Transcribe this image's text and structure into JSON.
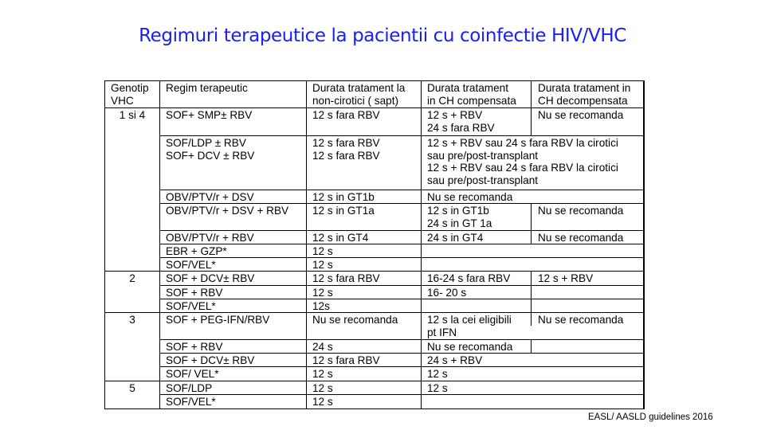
{
  "title": "Regimuri terapeutice la pacientii cu coinfectie HIV/VHC",
  "footer": "EASL/ AASLD guidelines 2016",
  "table": {
    "headers": {
      "genotip": "Genotip\nVHC",
      "regim": "Regim terapeutic",
      "durata_noncirotici": "Durata tratament la\nnon-cirotici ( sapt)",
      "durata_ch_comp": "Durata tratament\nin CH compensata",
      "durata_ch_decomp": "Durata tratament in\nCH decompensata"
    },
    "genotypes": {
      "g1_4": "1 si 4",
      "g2": "2",
      "g3": "3",
      "g5": "5"
    },
    "rows": [
      {
        "regim": "SOF+ SMP± RBV",
        "noncirotici": "12 s fara RBV",
        "ch_comp": "12 s + RBV\n24 s fara RBV",
        "ch_decomp": "Nu se recomanda"
      },
      {
        "regim": "SOF/LDP ± RBV\nSOF+ DCV ± RBV",
        "noncirotici": "12 s fara RBV\n12 s fara RBV",
        "ch_merged": "12 s + RBV sau 24 s fara RBV la cirotici\nsau pre/post-transplant\n12 s + RBV sau 24 s fara RBV la cirotici\nsau pre/post-transplant"
      },
      {
        "regim": "OBV/PTV/r + DSV",
        "noncirotici": "12 s in GT1b",
        "ch_comp": "Nu se recomanda"
      },
      {
        "regim": "OBV/PTV/r + DSV + RBV",
        "noncirotici": "12 s in GT1a",
        "ch_comp": "12 s in GT1b\n24 s in GT 1a",
        "ch_decomp": "Nu se recomanda"
      },
      {
        "regim": "OBV/PTV/r + RBV",
        "noncirotici": "12 s in GT4",
        "ch_comp": "24 s in GT4",
        "ch_decomp": "Nu se recomanda"
      },
      {
        "regim": "EBR + GZP*",
        "noncirotici": "12 s"
      },
      {
        "regim": "SOF/VEL*",
        "noncirotici": "12 s"
      },
      {
        "regim": "SOF + DCV± RBV",
        "noncirotici": "12 s fara RBV",
        "ch_comp": "16-24 s fara RBV",
        "ch_decomp": "12 s + RBV"
      },
      {
        "regim": "SOF + RBV",
        "noncirotici": "12 s",
        "ch_comp": "16- 20 s"
      },
      {
        "regim": "SOF/VEL*",
        "noncirotici": "12s"
      },
      {
        "regim": "SOF + PEG-IFN/RBV",
        "noncirotici": "Nu se recomanda",
        "ch_comp": "12 s la cei eligibili\npt IFN",
        "ch_decomp": "Nu se recomanda"
      },
      {
        "regim": "SOF + RBV",
        "noncirotici": "24 s",
        "ch_comp": "Nu se recomanda"
      },
      {
        "regim": "SOF + DCV± RBV",
        "noncirotici": "12 s fara RBV",
        "ch_comp": "24 s + RBV"
      },
      {
        "regim": "SOF/ VEL*",
        "noncirotici": "12 s",
        "ch_comp": "12 s"
      },
      {
        "regim": "SOF/LDP",
        "noncirotici": "12 s",
        "ch_comp": "12 s"
      },
      {
        "regim": "SOF/VEL*",
        "noncirotici": "12 s"
      }
    ]
  }
}
